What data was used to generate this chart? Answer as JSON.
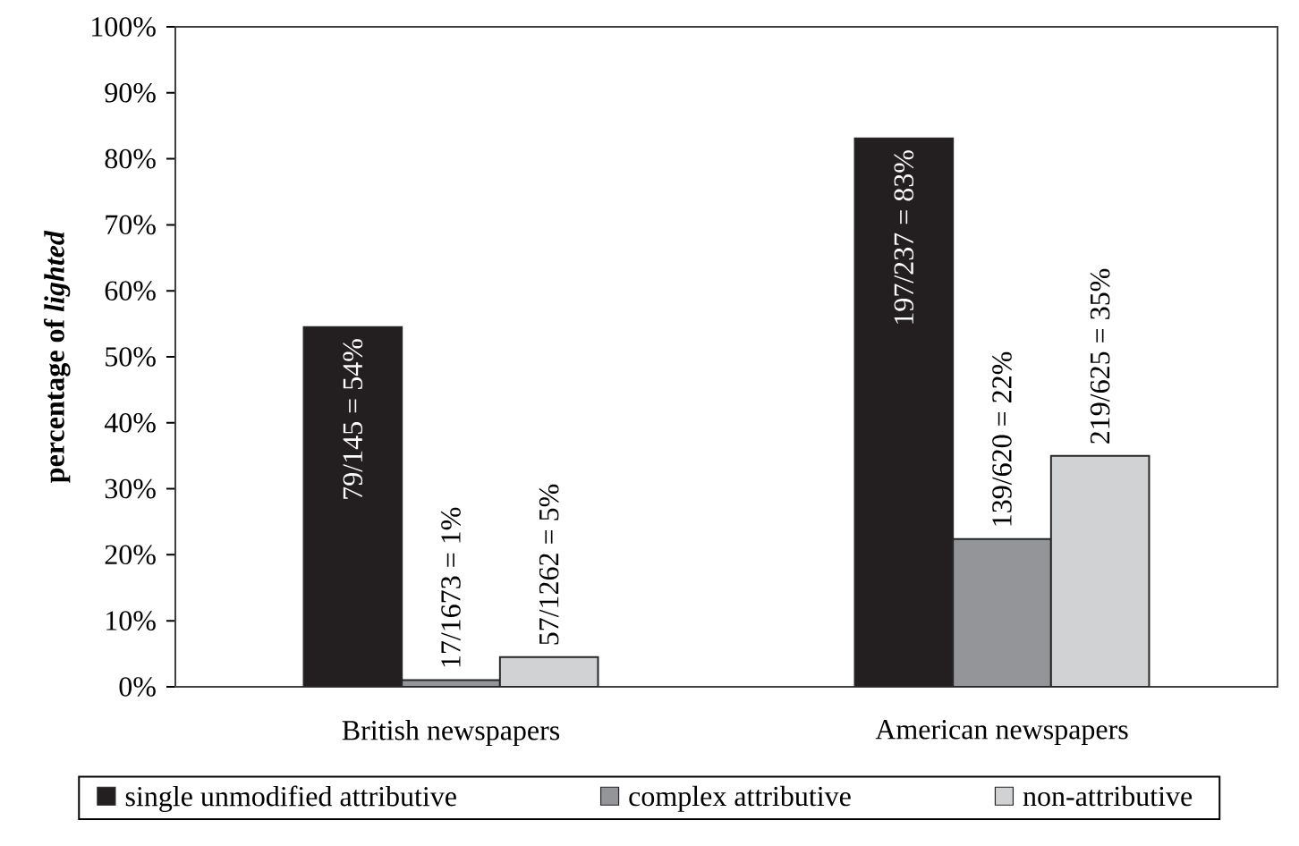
{
  "chart_data": {
    "type": "bar",
    "ylabel": "percentage of *lighted*",
    "categories": [
      "British newspapers",
      "American newspapers"
    ],
    "series": [
      {
        "name": "single unmodified attributive",
        "color": "#231f20",
        "values": [
          54.5,
          83.1
        ],
        "value_labels": [
          "79/145 = 54%",
          "197/237 = 83%"
        ]
      },
      {
        "name": "complex attributive",
        "color": "#949599",
        "values": [
          1.0,
          22.4
        ],
        "value_labels": [
          "17/1673 = 1%",
          "139/620 = 22%"
        ]
      },
      {
        "name": "non-attributive",
        "color": "#d1d2d4",
        "values": [
          4.5,
          35.0
        ],
        "value_labels": [
          "57/1262 = 5%",
          "219/625 = 35%"
        ]
      }
    ],
    "ylim": [
      0,
      100
    ],
    "yticks": [
      {
        "value": 0,
        "label": "0%"
      },
      {
        "value": 10,
        "label": "10%"
      },
      {
        "value": 20,
        "label": "20%"
      },
      {
        "value": 30,
        "label": "30%"
      },
      {
        "value": 40,
        "label": "40%"
      },
      {
        "value": 50,
        "label": "50%"
      },
      {
        "value": 60,
        "label": "60%"
      },
      {
        "value": 70,
        "label": "70%"
      },
      {
        "value": 80,
        "label": "80%"
      },
      {
        "value": 90,
        "label": "90%"
      },
      {
        "value": 100,
        "label": "100%"
      }
    ],
    "grid": false,
    "legend": "bottom"
  }
}
